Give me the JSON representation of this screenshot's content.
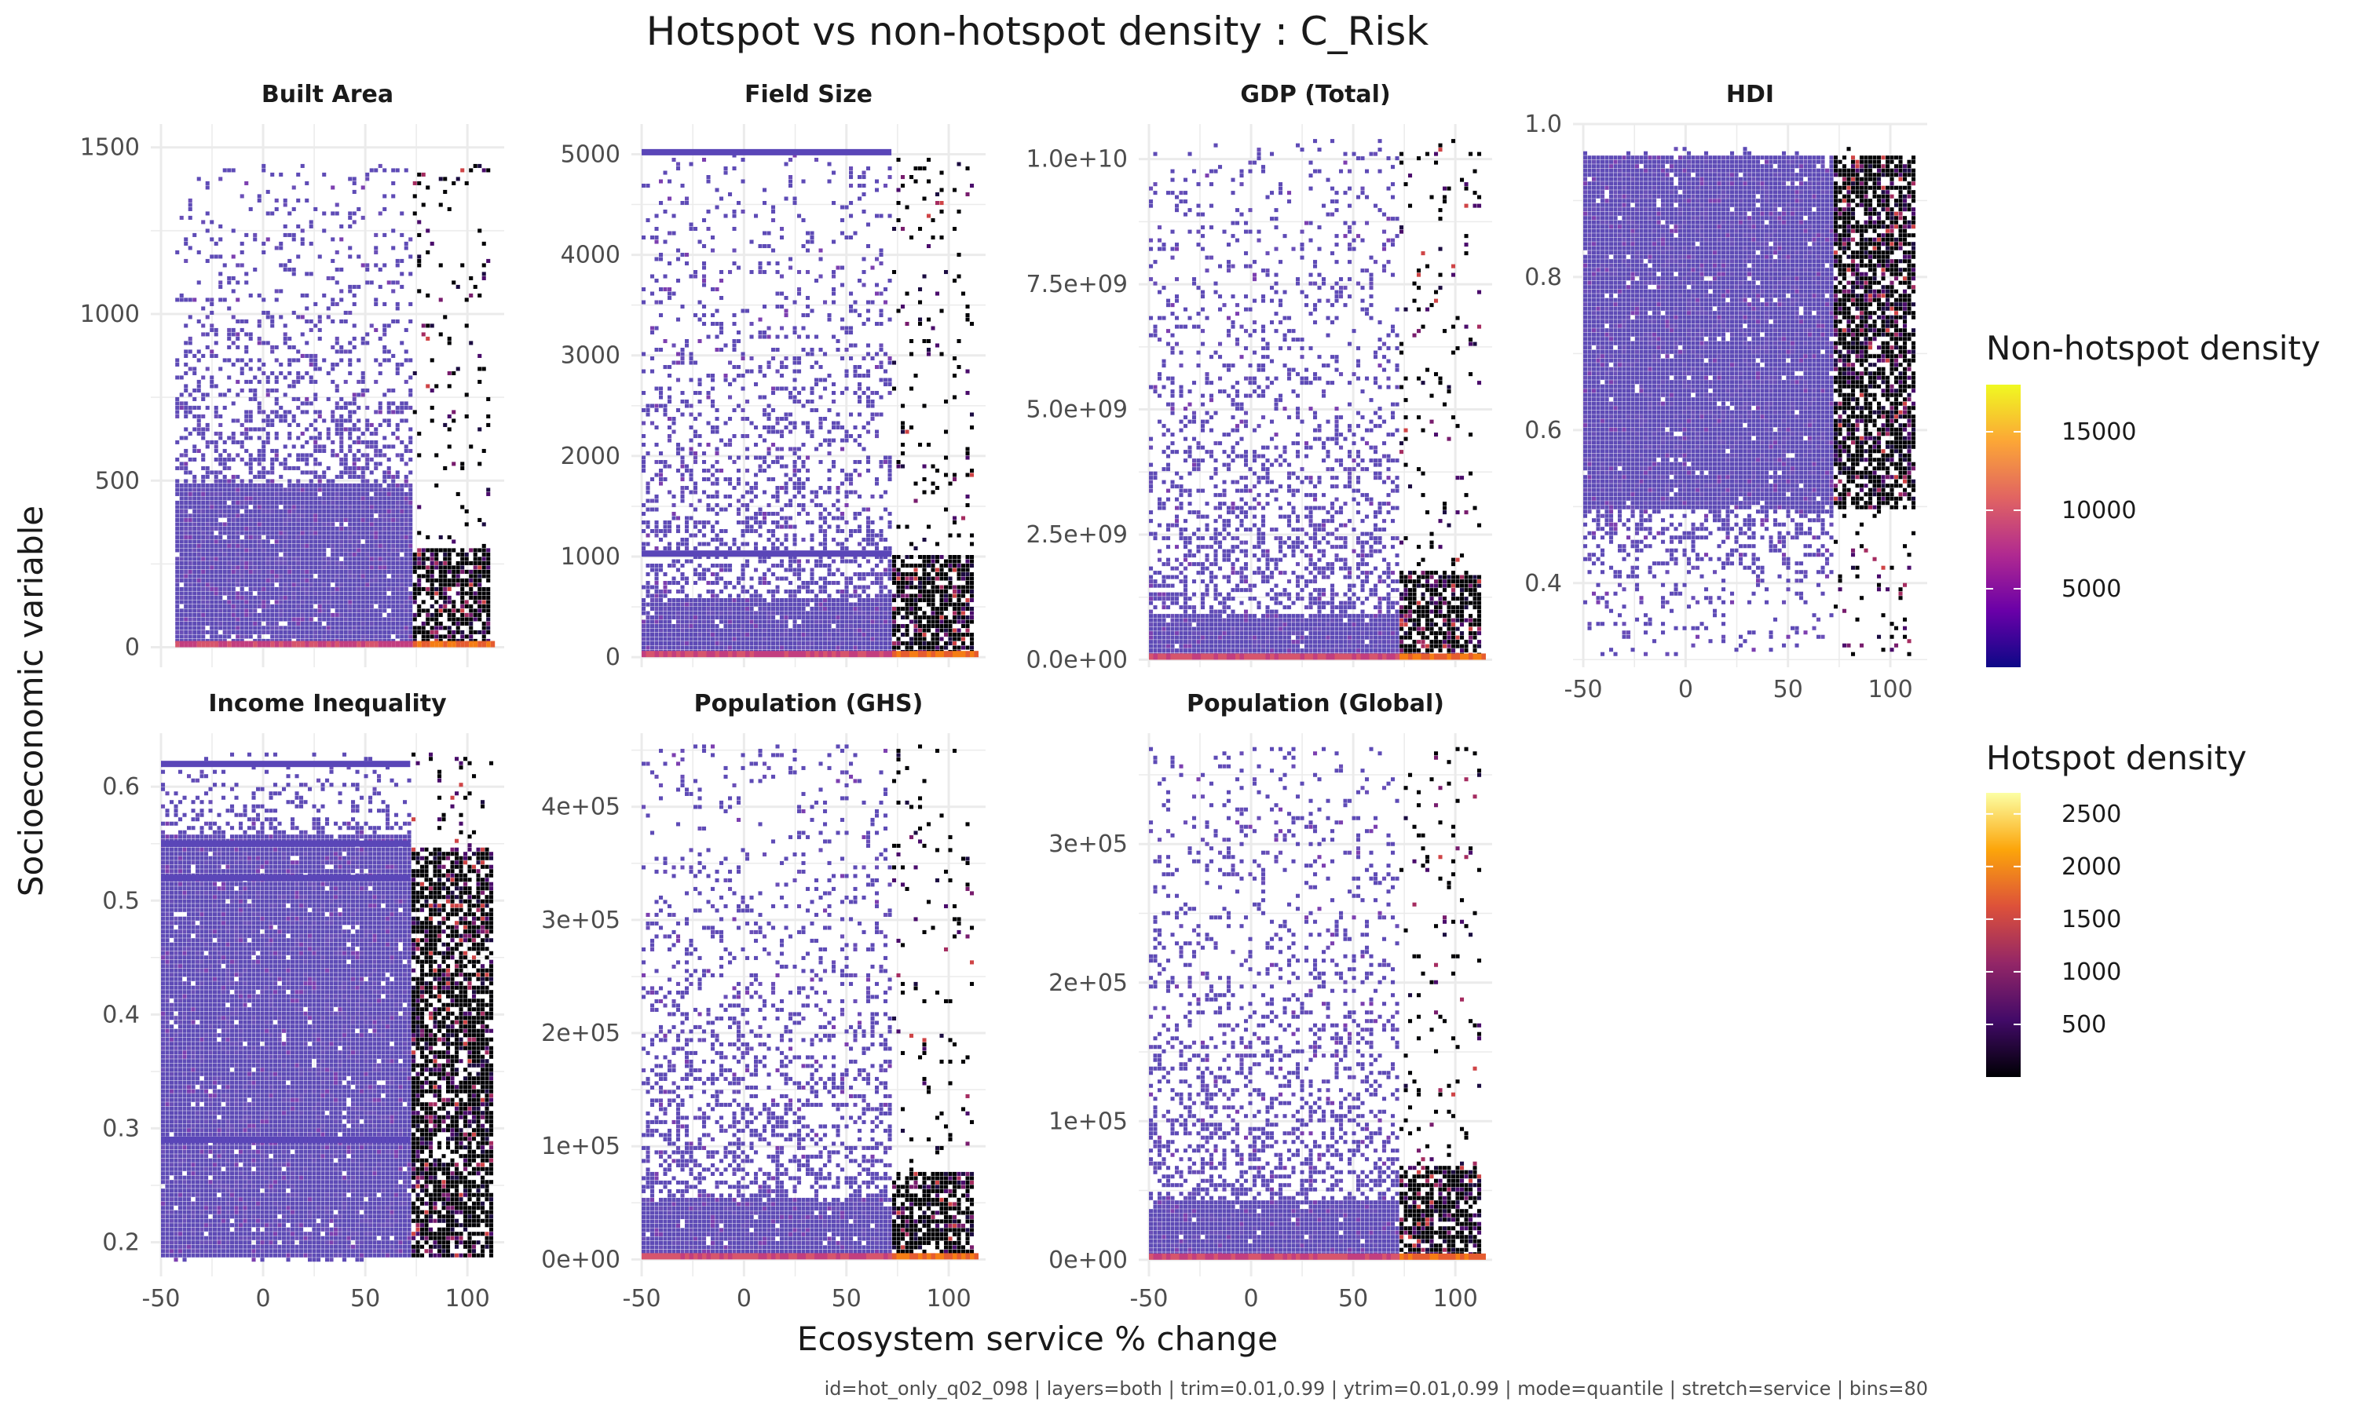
{
  "chart_data": {
    "type": "heatmap",
    "title": "Hotspot vs non-hotspot density : C_Risk",
    "xlabel": "Ecosystem service % change",
    "ylabel": "Socioeconomic variable",
    "caption": "id=hot_only_q02_098 | layers=both | trim=0.01,0.99 | ytrim=0.01,0.99 | mode=quantile | stretch=service | bins=80",
    "grid": true,
    "legend_position": "right",
    "hotspot_threshold_x": 72,
    "x_ticks": [
      "-50",
      "0",
      "50",
      "100"
    ],
    "x_range": [
      -55,
      118
    ],
    "panels": [
      {
        "name": "Built Area",
        "y_range": [
          -60,
          1570
        ],
        "y_ticks": [
          {
            "v": 0,
            "label": "0"
          },
          {
            "v": 500,
            "label": "500"
          },
          {
            "v": 1000,
            "label": "1000"
          },
          {
            "v": 1500,
            "label": "1500"
          }
        ],
        "data_x": [
          -43,
          112
        ],
        "data_y": [
          0,
          1450
        ],
        "dense_y_max": 500,
        "cont_y_max": null,
        "hot_dense_y_max": 300,
        "bands": []
      },
      {
        "name": "Field Size",
        "y_range": [
          -100,
          5300
        ],
        "y_ticks": [
          {
            "v": 0,
            "label": "0"
          },
          {
            "v": 1000,
            "label": "1000"
          },
          {
            "v": 2000,
            "label": "2000"
          },
          {
            "v": 3000,
            "label": "3000"
          },
          {
            "v": 4000,
            "label": "4000"
          },
          {
            "v": 5000,
            "label": "5000"
          }
        ],
        "data_x": [
          -50,
          113
        ],
        "data_y": [
          0,
          5050
        ],
        "dense_y_max": 600,
        "cont_y_max": 250,
        "hot_dense_y_max": 1050,
        "bands": [
          1030,
          5020
        ]
      },
      {
        "name": "GDP (Total)",
        "y_range": [
          -150000000.0,
          10700000000.0
        ],
        "y_ticks": [
          {
            "v": 0,
            "label": "0.0e+00"
          },
          {
            "v": 2500000000.0,
            "label": "2.5e+09"
          },
          {
            "v": 5000000000.0,
            "label": "5.0e+09"
          },
          {
            "v": 7500000000.0,
            "label": "7.5e+09"
          },
          {
            "v": 10000000000.0,
            "label": "1.0e+10"
          }
        ],
        "data_x": [
          -50,
          113
        ],
        "data_y": [
          0,
          10400000000.0
        ],
        "dense_y_max": 1000000000.0,
        "cont_y_max": 300000000.0,
        "hot_dense_y_max": 1800000000.0,
        "bands": []
      },
      {
        "name": "HDI",
        "y_range": [
          0.29,
          1.0
        ],
        "y_ticks": [
          {
            "v": 0.4,
            "label": "0.4"
          },
          {
            "v": 0.6,
            "label": "0.6"
          },
          {
            "v": 0.8,
            "label": "0.8"
          },
          {
            "v": 1.0,
            "label": "1.0"
          }
        ],
        "data_x": [
          -50,
          113
        ],
        "data_y": [
          0.3,
          0.97
        ],
        "dense_y_max": 0.96,
        "cont_y_max": null,
        "hot_dense_y_max": 0.96,
        "dense_y_min": 0.5,
        "bands": []
      },
      {
        "name": "Income Inequality",
        "y_range": [
          0.17,
          0.647
        ],
        "y_ticks": [
          {
            "v": 0.2,
            "label": "0.2"
          },
          {
            "v": 0.3,
            "label": "0.3"
          },
          {
            "v": 0.4,
            "label": "0.4"
          },
          {
            "v": 0.5,
            "label": "0.5"
          },
          {
            "v": 0.6,
            "label": "0.6"
          }
        ],
        "data_x": [
          -50,
          113
        ],
        "data_y": [
          0.18,
          0.63
        ],
        "dense_y_max": 0.56,
        "cont_y_max": null,
        "hot_dense_y_max": 0.55,
        "dense_y_min": 0.19,
        "bands": [
          0.62,
          0.55,
          0.52,
          0.29
        ]
      },
      {
        "name": "Population (GHS)",
        "y_range": [
          -15000.0,
          465000.0
        ],
        "y_ticks": [
          {
            "v": 0,
            "label": "0e+00"
          },
          {
            "v": 100000.0,
            "label": "1e+05"
          },
          {
            "v": 200000.0,
            "label": "2e+05"
          },
          {
            "v": 300000.0,
            "label": "3e+05"
          },
          {
            "v": 400000.0,
            "label": "4e+05"
          }
        ],
        "data_x": [
          -50,
          113
        ],
        "data_y": [
          0,
          455000.0
        ],
        "dense_y_max": 55000.0,
        "cont_y_max": 15000.0,
        "hot_dense_y_max": 80000.0,
        "bands": []
      },
      {
        "name": "Population (Global)",
        "y_range": [
          -12000.0,
          380000.0
        ],
        "y_ticks": [
          {
            "v": 0,
            "label": "0e+00"
          },
          {
            "v": 100000.0,
            "label": "1e+05"
          },
          {
            "v": 200000.0,
            "label": "2e+05"
          },
          {
            "v": 300000.0,
            "label": "3e+05"
          }
        ],
        "data_x": [
          -50,
          113
        ],
        "data_y": [
          0,
          370000.0
        ],
        "dense_y_max": 45000.0,
        "cont_y_max": 12000.0,
        "hot_dense_y_max": 70000.0,
        "bands": []
      }
    ],
    "legends": [
      {
        "title": "Non-hotspot density",
        "colors": [
          "#0d0887",
          "#6a00a8",
          "#b12a90",
          "#e16462",
          "#fca636",
          "#f0f921"
        ],
        "breaks": [
          {
            "v": 5000,
            "label": "5000"
          },
          {
            "v": 10000,
            "label": "10000"
          },
          {
            "v": 15000,
            "label": "15000"
          }
        ],
        "range": [
          0,
          18000
        ]
      },
      {
        "title": "Hotspot density",
        "colors": [
          "#000004",
          "#420a68",
          "#932667",
          "#dd513a",
          "#fca50a",
          "#fcffa4"
        ],
        "breaks": [
          {
            "v": 500,
            "label": "500"
          },
          {
            "v": 1000,
            "label": "1000"
          },
          {
            "v": 1500,
            "label": "1500"
          },
          {
            "v": 2000,
            "label": "2000"
          },
          {
            "v": 2500,
            "label": "2500"
          }
        ],
        "range": [
          0,
          2700
        ]
      }
    ]
  }
}
